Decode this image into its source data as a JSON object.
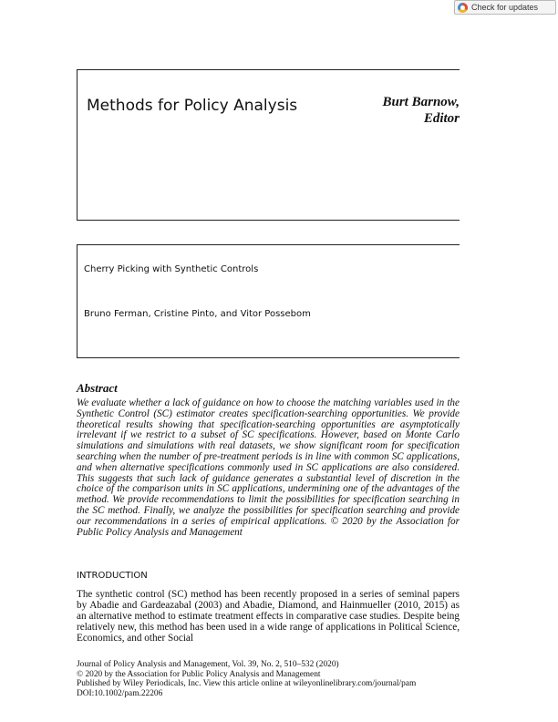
{
  "toolbar": {
    "check_updates_label": "Check for updates",
    "check_updates_icon": "crossmark-icon"
  },
  "header": {
    "section_title": "Methods for Policy Analysis",
    "editor_name": "Burt Barnow,",
    "editor_role": "Editor"
  },
  "article": {
    "title": "Cherry Picking with Synthetic Controls",
    "authors": "Bruno Ferman, Cristine Pinto, and Vitor Possebom"
  },
  "abstract": {
    "heading": "Abstract",
    "body": "We evaluate whether a lack of guidance on how to choose the matching variables used in the Synthetic Control (SC) estimator creates specification-searching opportunities. We provide theoretical results showing that specification-searching opportunities are asymptotically irrelevant if we restrict to a subset of SC specifications. However, based on Monte Carlo simulations and simulations with real datasets, we show significant room for specification searching when the number of pre-treatment periods is in line with common SC applications, and when alternative specifications commonly used in SC applications are also considered. This suggests that such lack of guidance generates a substantial level of discretion in the choice of the comparison units in SC applications, undermining one of the advantages of the method. We provide recommendations to limit the possibilities for specification searching in the SC method. Finally, we analyze the possibilities for specification searching and provide our recommendations in a series of empirical applications.  © 2020 by the Association for Public Policy Analysis and Management"
  },
  "introduction": {
    "heading": "INTRODUCTION",
    "body": "The synthetic control (SC) method has been recently proposed in a series of seminal papers by Abadie and Gardeazabal (2003) and Abadie, Diamond, and Hainmueller (2010, 2015) as an alternative method to estimate treatment effects in comparative case studies. Despite being relatively new, this method has been used in a wide range of applications in Political Science, Economics, and other Social"
  },
  "footer": {
    "line1": "Journal of Policy Analysis and Management, Vol. 39, No. 2, 510–532 (2020)",
    "line2": "© 2020 by the Association for Public Policy Analysis and Management",
    "line3": "Published by Wiley Periodicals, Inc. View this article online at wileyonlinelibrary.com/journal/pam",
    "line4": "DOI:10.1002/pam.22206"
  }
}
